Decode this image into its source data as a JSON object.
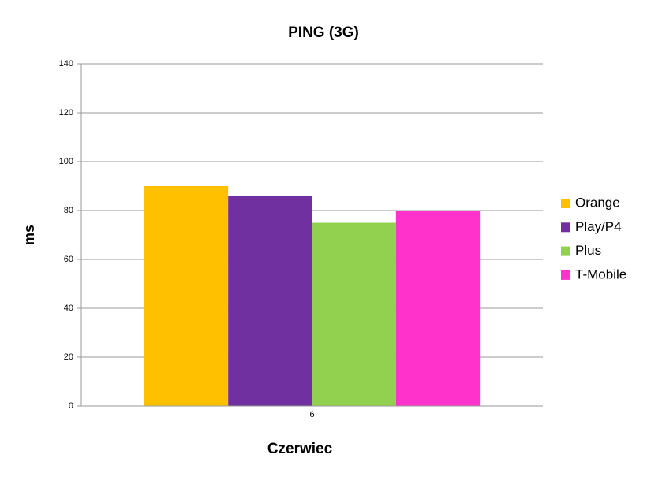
{
  "chart_data": {
    "type": "bar",
    "title": "PING (3G)",
    "x_label": "Czerwiec",
    "y_label": "ms",
    "categories": [
      "6"
    ],
    "series": [
      {
        "name": "Orange",
        "color": "#ffc000",
        "values": [
          90
        ]
      },
      {
        "name": "Play/P4",
        "color": "#7030a0",
        "values": [
          86
        ]
      },
      {
        "name": "Plus",
        "color": "#92d050",
        "values": [
          75
        ]
      },
      {
        "name": "T-Mobile",
        "color": "#ff33cc",
        "values": [
          80
        ]
      }
    ],
    "ylim": [
      0,
      140
    ],
    "yticks": [
      0,
      20,
      40,
      60,
      80,
      100,
      120,
      140
    ],
    "grid": true,
    "legend": "right"
  }
}
